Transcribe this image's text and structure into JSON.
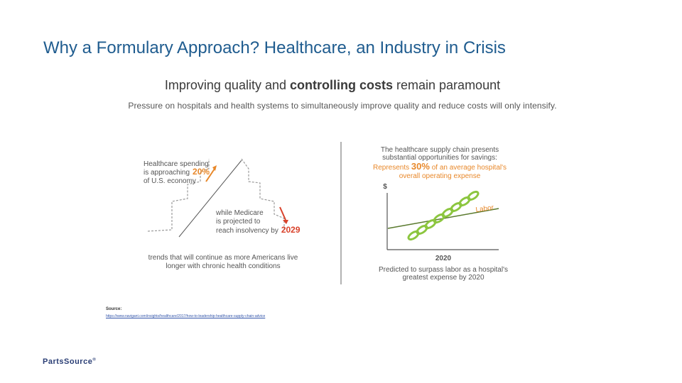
{
  "slide": {
    "title": "Why a Formulary Approach? Healthcare, an Industry in Crisis",
    "subtitle_pre": "Improving quality and ",
    "subtitle_bold": "controlling costs",
    "subtitle_post": " remain paramount",
    "description": "Pressure on hospitals and health systems to simultaneously improve quality and reduce costs will only intensify."
  },
  "left_panel": {
    "spending_line1": "Healthcare spending",
    "spending_line2": "is approaching",
    "spending_pct": "20%",
    "spending_line3": "of U.S. economy",
    "medicare_line1": "while Medicare",
    "medicare_line2": "is projected to",
    "medicare_line3": "reach insolvency by",
    "medicare_year": "2029",
    "trends_line1": "trends that will continue as more Americans live",
    "trends_line2": "longer with chronic health conditions"
  },
  "right_panel": {
    "head_line1": "The healthcare supply chain presents",
    "head_line2": "substantial opportunities for savings:",
    "represents_pre": "Represents ",
    "represents_pct": "30%",
    "represents_post": " of an average hospital's",
    "head_line4": "overall operating expense",
    "y_axis_label": "$",
    "labor_label": "Labor",
    "x_axis_label": "2020",
    "caption_line1": "Predicted to surpass labor as a hospital's",
    "caption_line2": "greatest expense by 2020"
  },
  "source": {
    "label": "Source:",
    "url": "https://www.navigant.com/insights/healthcare/2017/how-to-leadership-healthcare-supply-chain-advice"
  },
  "logo": {
    "text": "PartsSource",
    "mark": "®"
  },
  "colors": {
    "title": "#1f5c8f",
    "accent_orange": "#e8882a",
    "accent_red": "#d9422b",
    "chain_green": "#8cc63f",
    "labor_line": "#5a7a2e"
  }
}
